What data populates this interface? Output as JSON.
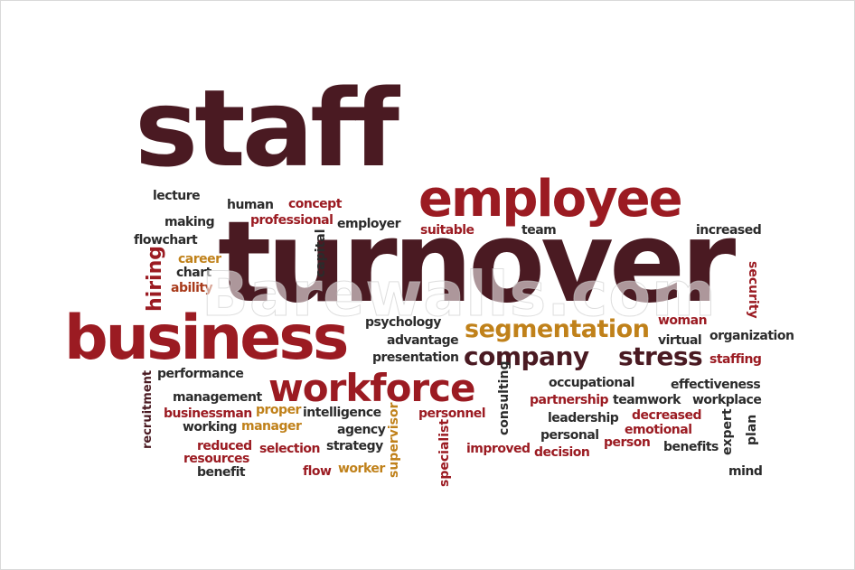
{
  "words": {
    "staff": "staff",
    "turnover": "turnover",
    "employee": "employee",
    "business": "business",
    "workforce": "workforce",
    "segmentation": "segmentation",
    "company": "company",
    "stress": "stress",
    "lecture": "lecture",
    "human": "human",
    "concept": "concept",
    "making": "making",
    "professional": "professional",
    "employer": "employer",
    "suitable": "suitable",
    "team": "team",
    "increased": "increased",
    "flowchart": "flowchart",
    "career": "career",
    "chart": "chart",
    "ability": "ability",
    "hiring": "hiring",
    "capital": "capital",
    "security": "security",
    "psychology": "psychology",
    "woman": "woman",
    "advantage": "advantage",
    "virtual": "virtual",
    "organization": "organization",
    "presentation": "presentation",
    "staffing": "staffing",
    "performance": "performance",
    "recruitment": "recruitment",
    "occupational": "occupational",
    "effectiveness": "effectiveness",
    "management": "management",
    "consulting": "consulting",
    "partnership": "partnership",
    "teamwork": "teamwork",
    "workplace": "workplace",
    "businessman": "businessman",
    "proper": "proper",
    "intelligence": "intelligence",
    "personnel": "personnel",
    "leadership": "leadership",
    "decreased": "decreased",
    "expert": "expert",
    "plan": "plan",
    "working": "working",
    "manager": "manager",
    "agency": "agency",
    "supervisor": "supervisor",
    "emotional": "emotional",
    "personal": "personal",
    "person": "person",
    "reduced": "reduced",
    "selection": "selection",
    "strategy": "strategy",
    "specialist": "specialist",
    "improved": "improved",
    "decision": "decision",
    "benefits": "benefits",
    "resources": "resources",
    "benefit": "benefit",
    "flow": "flow",
    "worker": "worker",
    "mind": "mind"
  },
  "watermark": "Barewalls.com",
  "colors": {
    "dark": "#4a1a22",
    "maroon": "#5c1423",
    "red": "#9b1b22",
    "brown": "#a83a1a",
    "orange": "#c0811a",
    "black": "#2b2b2b"
  }
}
